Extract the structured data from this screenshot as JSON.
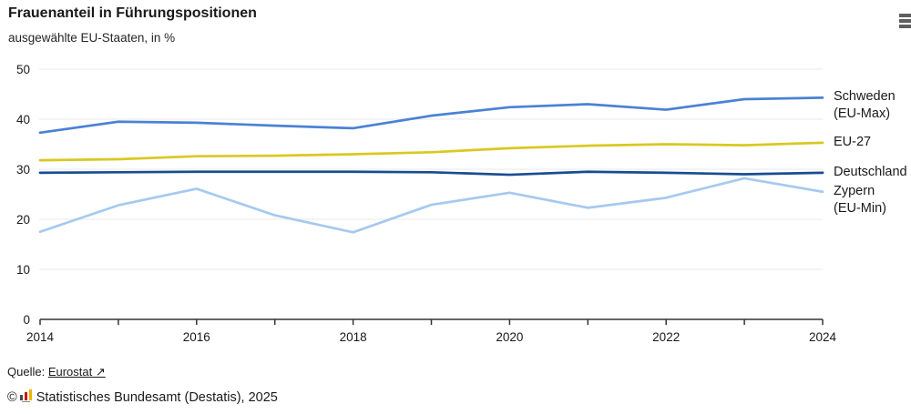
{
  "chart_data": {
    "type": "line",
    "title": "Frauenanteil in Führungspositionen",
    "subtitle": "ausgewählte EU-Staaten, in %",
    "x": [
      2014,
      2015,
      2016,
      2017,
      2018,
      2019,
      2020,
      2021,
      2022,
      2023,
      2024
    ],
    "series": [
      {
        "name": "Schweden\n(EU-Max)",
        "color": "#4a82d4",
        "values": [
          37.3,
          39.5,
          39.3,
          38.7,
          38.2,
          40.7,
          42.4,
          43.0,
          41.9,
          44.0,
          44.3
        ]
      },
      {
        "name": "EU-27",
        "color": "#d9c821",
        "values": [
          31.8,
          32.0,
          32.6,
          32.7,
          33.0,
          33.4,
          34.2,
          34.7,
          35.0,
          34.8,
          35.3
        ]
      },
      {
        "name": "Deutschland",
        "color": "#184d91",
        "values": [
          29.3,
          29.4,
          29.5,
          29.5,
          29.5,
          29.4,
          28.9,
          29.5,
          29.3,
          29.0,
          29.3
        ]
      },
      {
        "name": "Zypern\n(EU-Min)",
        "color": "#a6c9f0",
        "values": [
          17.5,
          22.8,
          26.1,
          20.8,
          17.4,
          22.9,
          25.3,
          22.3,
          24.3,
          28.2,
          25.5
        ]
      }
    ],
    "ylim": [
      0,
      50
    ],
    "yticks": [
      0,
      10,
      20,
      30,
      40,
      50
    ],
    "xtick_labels": [
      2014,
      2016,
      2018,
      2020,
      2022,
      2024
    ],
    "grid": "horizontal",
    "legend_position": "right",
    "colors": {
      "grid": "#e9e9e9",
      "axis": "#333333",
      "text": "#1a1a1a"
    }
  },
  "menu": {
    "icon": "hamburger-menu-icon"
  },
  "footer": {
    "source_label": "Quelle:",
    "source_link": "Eurostat ↗",
    "copyright_symbol": "©",
    "copyright_text": "Statistisches Bundesamt (Destatis), 2025",
    "logo": "destatis-bar-chart-logo"
  }
}
